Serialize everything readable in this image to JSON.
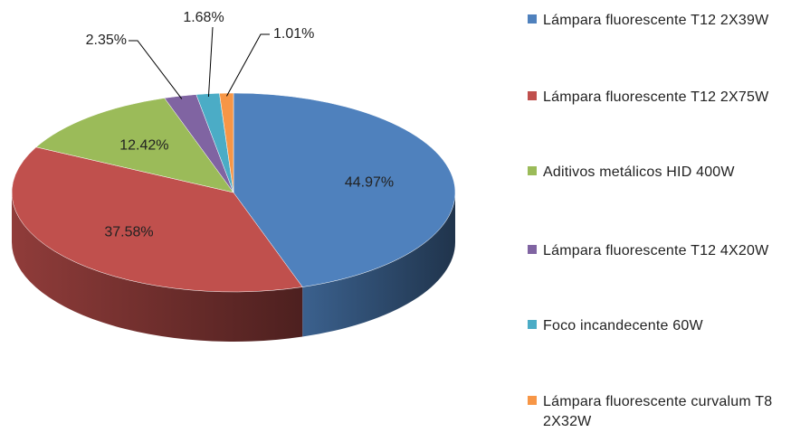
{
  "chart_data": {
    "type": "pie",
    "categories": [
      "Lámpara fluorescente T12 2X39W",
      "Lámpara fluorescente T12 2X75W",
      "Aditivos metálicos HID 400W",
      "Lámpara fluorescente T12 4X20W",
      "Foco incandecente 60W",
      "Lámpara fluorescente curvalum T8 2X32W"
    ],
    "values": [
      44.97,
      37.58,
      12.42,
      2.35,
      1.68,
      1.01
    ],
    "value_labels": [
      "44.97%",
      "37.58%",
      "12.42%",
      "2.35%",
      "1.68%",
      "1.01%"
    ],
    "colors": [
      "#4f81bd",
      "#c0504d",
      "#9bbb59",
      "#8064a2",
      "#4bacc6",
      "#f79646"
    ],
    "legend": "right"
  }
}
